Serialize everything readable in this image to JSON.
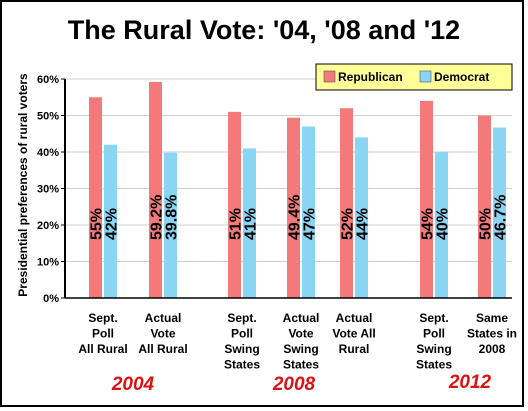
{
  "title": "The Rural Vote: '04, '08 and '12",
  "colors": {
    "republican": "#f47a7a",
    "democrat": "#8ad4f4",
    "legend_bg": "#ffff99",
    "year": "#dd1111"
  },
  "year_labels": [
    "2004",
    "2008",
    "2012"
  ],
  "chart_data": {
    "type": "bar",
    "title": "The Rural Vote: '04, '08 and '12",
    "ylabel": "Presidential preferences of rural voters",
    "ylim": [
      0,
      60
    ],
    "ytick_labels": [
      "0%",
      "10%",
      "20%",
      "30%",
      "40%",
      "50%",
      "60%"
    ],
    "ytick_values": [
      0,
      10,
      20,
      30,
      40,
      50,
      60
    ],
    "legend_position": "top-right",
    "categories": [
      [
        "Sept.",
        "Poll",
        "All Rural"
      ],
      [
        "Actual",
        "Vote",
        "All Rural"
      ],
      [
        "Sept.",
        "Poll",
        "Swing",
        "States"
      ],
      [
        "Actual",
        "Vote",
        "Swing",
        "States"
      ],
      [
        "Actual",
        "Vote All",
        "Rural"
      ],
      [
        "Sept.",
        "Poll",
        "Swing",
        "States"
      ],
      [
        "Same",
        "States in",
        "2008"
      ]
    ],
    "series": [
      {
        "name": "Republican",
        "values": [
          55,
          59.2,
          51,
          49.4,
          52,
          54,
          50
        ],
        "labels": [
          "55%",
          "59.2%",
          "51%",
          "49.4%",
          "52%",
          "54%",
          "50%"
        ]
      },
      {
        "name": "Democrat",
        "values": [
          42,
          39.8,
          41,
          47,
          44,
          40,
          46.7
        ],
        "labels": [
          "42%",
          "39.8%",
          "41%",
          "47%",
          "44%",
          "40%",
          "46.7%"
        ]
      }
    ]
  }
}
